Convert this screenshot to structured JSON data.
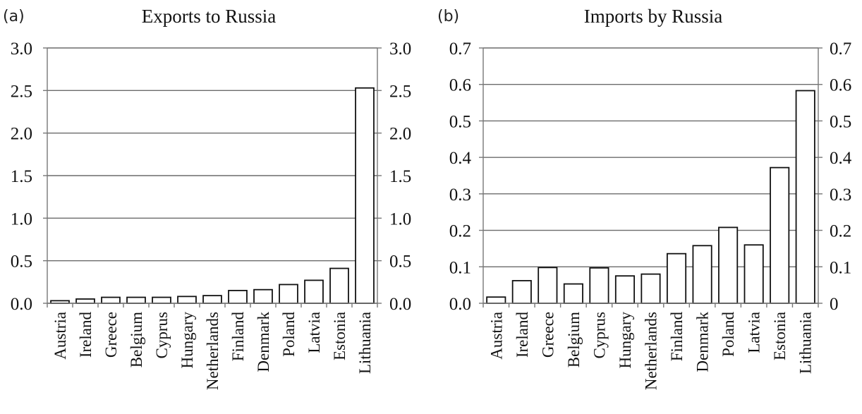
{
  "chart_data": [
    {
      "type": "bar",
      "panel": "(a)",
      "title": "Exports to Russia",
      "xlabel": "",
      "ylabel": "",
      "ylim": [
        0,
        3.0
      ],
      "yticks_left": [
        "0.0",
        "0.5",
        "1.0",
        "1.5",
        "2.0",
        "2.5",
        "3.0"
      ],
      "yticks_right": [
        "0.0",
        "0.5",
        "1.0",
        "1.5",
        "2.0",
        "2.5",
        "3.0"
      ],
      "grid": true,
      "categories": [
        "Austria",
        "Ireland",
        "Greece",
        "Belgium",
        "Cyprus",
        "Hungary",
        "Netherlands",
        "Finland",
        "Denmark",
        "Poland",
        "Latvia",
        "Estonia",
        "Lithuania"
      ],
      "values": [
        0.03,
        0.05,
        0.07,
        0.07,
        0.07,
        0.08,
        0.09,
        0.15,
        0.16,
        0.22,
        0.27,
        0.41,
        2.53
      ]
    },
    {
      "type": "bar",
      "panel": "(b)",
      "title": "Imports by Russia",
      "xlabel": "",
      "ylabel": "",
      "ylim": [
        0,
        0.7
      ],
      "yticks_left": [
        "0.0",
        "0.1",
        "0.2",
        "0.3",
        "0.4",
        "0.5",
        "0.6",
        "0.7"
      ],
      "yticks_right": [
        "0",
        "0.1",
        "0.2",
        "0.3",
        "0.4",
        "0.5",
        "0.6",
        "0.7"
      ],
      "grid": true,
      "categories": [
        "Austria",
        "Ireland",
        "Greece",
        "Belgium",
        "Cyprus",
        "Hungary",
        "Netherlands",
        "Finland",
        "Denmark",
        "Poland",
        "Latvia",
        "Estonia",
        "Lithuania"
      ],
      "values": [
        0.017,
        0.062,
        0.098,
        0.053,
        0.097,
        0.075,
        0.08,
        0.136,
        0.158,
        0.208,
        0.16,
        0.372,
        0.583
      ]
    }
  ]
}
